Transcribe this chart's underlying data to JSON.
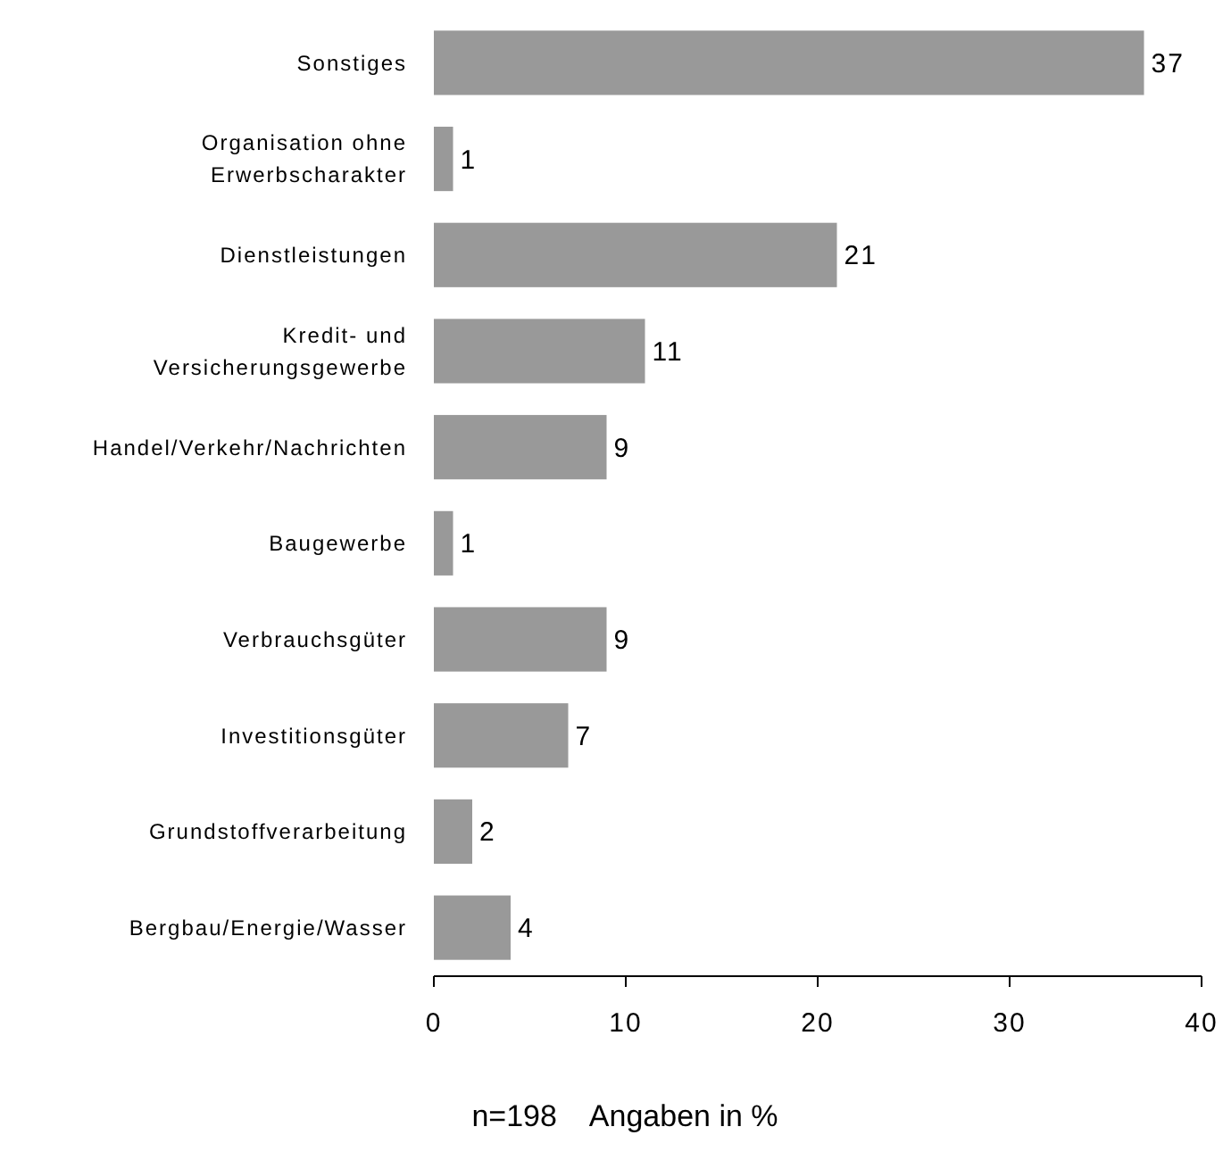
{
  "chart_data": {
    "type": "bar",
    "orientation": "horizontal",
    "xlabel": "n=198    Angaben in %",
    "categories": [
      "Sonstiges",
      "Organisation ohne Erwerbscharakter",
      "Dienstleistungen",
      "Kredit- und Versicherungsgewerbe",
      "Handel/Verkehr/Nachrichten",
      "Baugewerbe",
      "Verbrauchsgüter",
      "Investitionsgüter",
      "Grundstoffverarbeitung",
      "Bergbau/Energie/Wasser"
    ],
    "values": [
      37,
      1,
      21,
      11,
      9,
      1,
      9,
      7,
      2,
      4
    ],
    "color": "#999999",
    "data_labels": true,
    "xlim": [
      0,
      40
    ],
    "xticks": [
      0,
      10,
      20,
      30,
      40
    ]
  }
}
